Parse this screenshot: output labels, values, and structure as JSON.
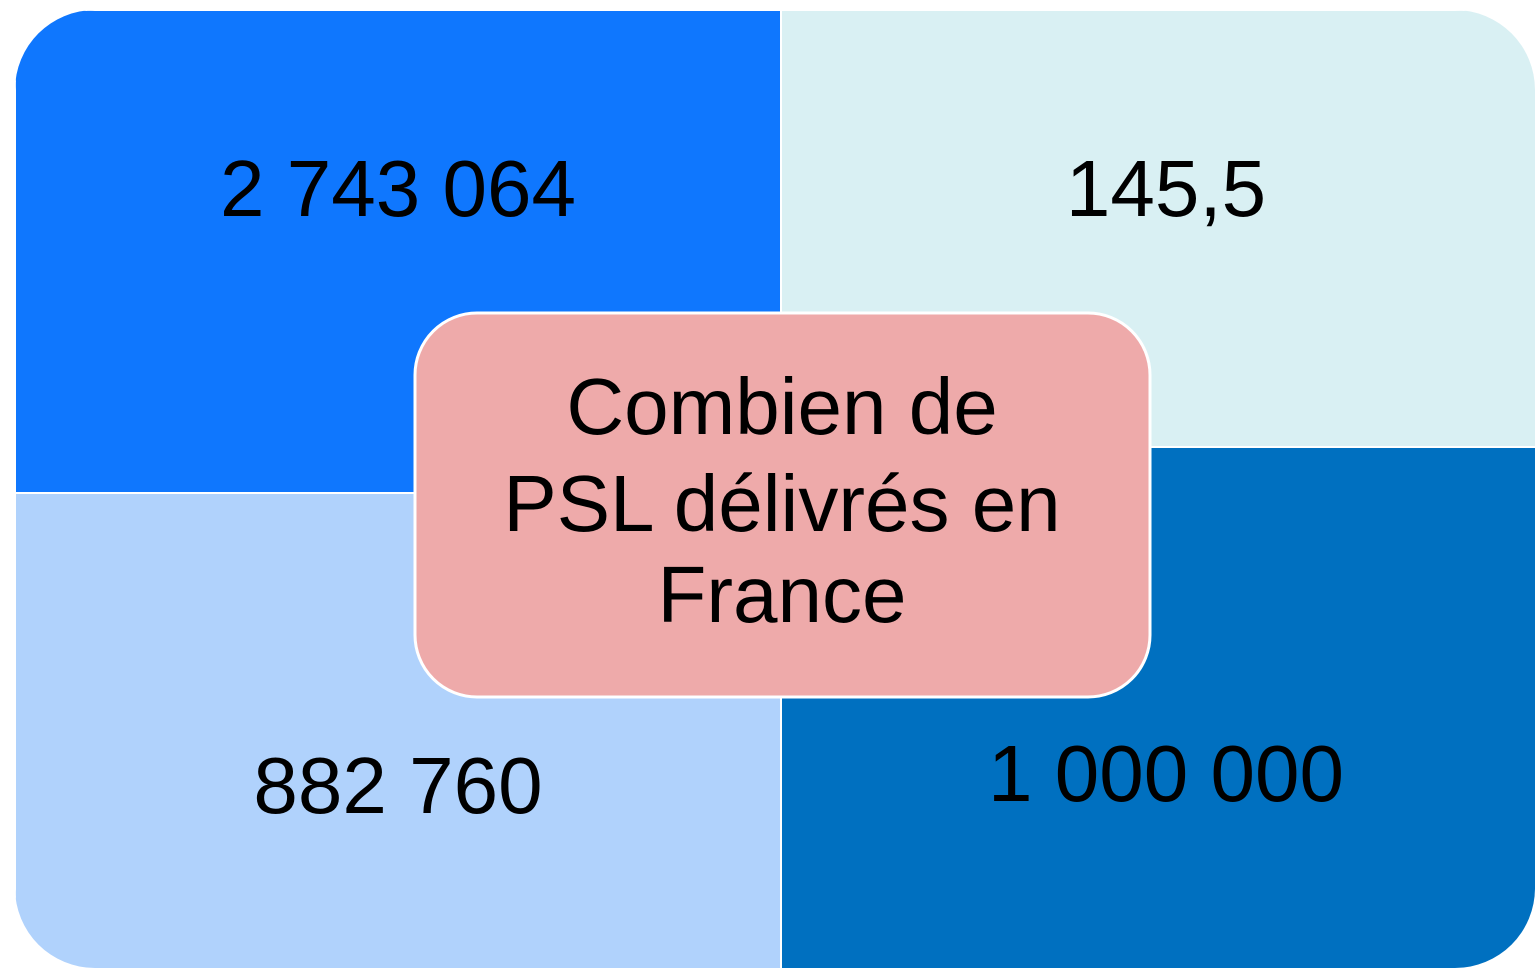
{
  "quadrants": [
    {
      "text": "2 743 064"
    },
    {
      "text": "145,5"
    },
    {
      "text": "882 760"
    },
    {
      "text": "1 000 000"
    }
  ],
  "center": {
    "lines": [
      "Combien de",
      "PSL délivrés en",
      "France"
    ]
  }
}
